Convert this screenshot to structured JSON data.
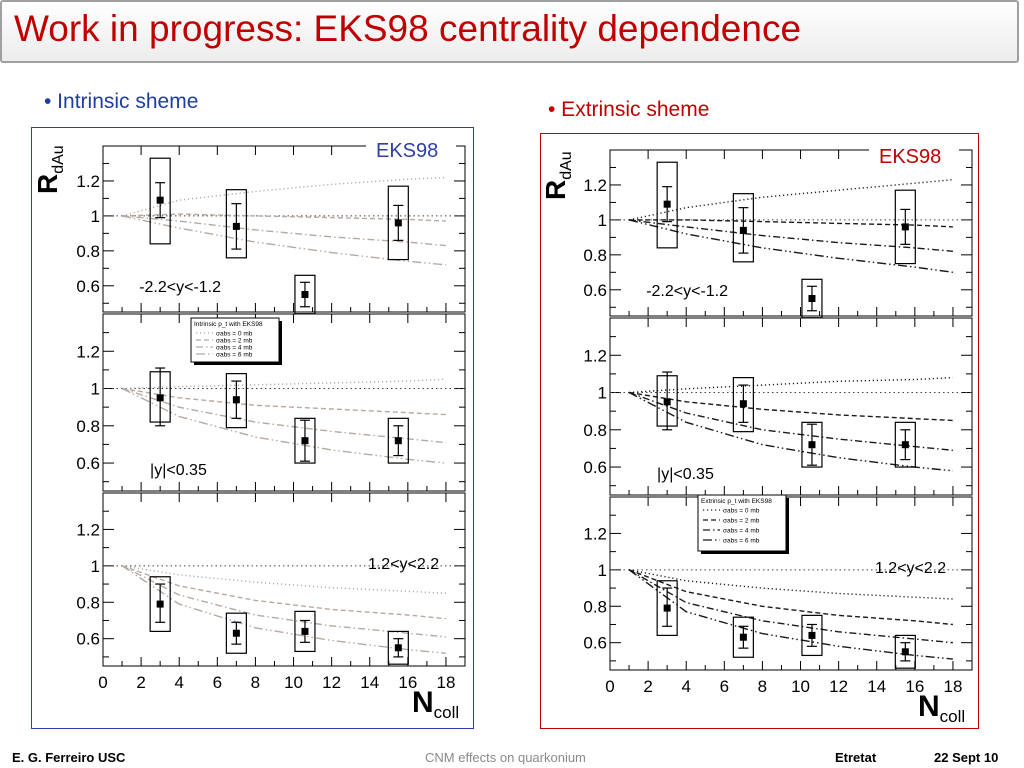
{
  "slide": {
    "title": "Work in progress: EKS98 centrality dependence"
  },
  "left_panel": {
    "bullet": "• Intrinsic sheme",
    "model_label": "EKS98",
    "border_color": "#2f3fa8"
  },
  "right_panel": {
    "bullet": "• Extrinsic sheme",
    "model_label": "EKS98",
    "border_color": "#c00000"
  },
  "footer": {
    "author": "E. G. Ferreiro USC",
    "topic": "CNM effects on quarkonium",
    "venue": "Etretat",
    "date": "22 Sept 10"
  },
  "chart_data": [
    {
      "type": "scatter",
      "scheme": "intrinsic",
      "ylabel": "R_dAu",
      "xlabel": "N_coll",
      "xlim": [
        0,
        19
      ],
      "x_ticks": [
        "0",
        "2",
        "4",
        "6",
        "8",
        "10",
        "12",
        "14",
        "16",
        "18"
      ],
      "y_ticks": [
        "0.6",
        "0.8",
        "1",
        "1.2"
      ],
      "legend": {
        "title": "Intrinsic p_t with EKS98",
        "entries": [
          "σabs = 0 mb",
          "σabs = 2 mb",
          "σabs = 4 mb",
          "σabs = 6 mb"
        ],
        "panel": 1
      },
      "panels": [
        {
          "label": "-2.2<y<-1.2",
          "ylim": [
            0.45,
            1.4
          ],
          "points": [
            {
              "x": 3.0,
              "y": 1.09,
              "stat": [
                0.99,
                1.19
              ],
              "sys": [
                0.84,
                1.33
              ]
            },
            {
              "x": 7.0,
              "y": 0.94,
              "stat": [
                0.81,
                1.07
              ],
              "sys": [
                0.76,
                1.15
              ]
            },
            {
              "x": 10.6,
              "y": 0.55,
              "stat": [
                0.48,
                0.62
              ],
              "sys": [
                0.44,
                0.66
              ]
            },
            {
              "x": 15.5,
              "y": 0.96,
              "stat": [
                0.86,
                1.06
              ],
              "sys": [
                0.75,
                1.17
              ]
            }
          ],
          "curves": [
            {
              "sigma_abs": "0 mb",
              "x": [
                1,
                4,
                8,
                12,
                16,
                18
              ],
              "y": [
                1.0,
                1.09,
                1.14,
                1.18,
                1.21,
                1.22
              ]
            },
            {
              "sigma_abs": "2 mb",
              "x": [
                1,
                4,
                8,
                12,
                16,
                18
              ],
              "y": [
                1.0,
                1.01,
                1.0,
                0.99,
                0.98,
                0.97
              ]
            },
            {
              "sigma_abs": "4 mb",
              "x": [
                1,
                4,
                8,
                12,
                16,
                18
              ],
              "y": [
                1.0,
                0.97,
                0.92,
                0.88,
                0.85,
                0.83
              ]
            },
            {
              "sigma_abs": "6 mb",
              "x": [
                1,
                4,
                8,
                12,
                16,
                18
              ],
              "y": [
                1.0,
                0.93,
                0.85,
                0.79,
                0.74,
                0.72
              ]
            }
          ]
        },
        {
          "label": "|y|<0.35",
          "ylim": [
            0.45,
            1.4
          ],
          "points": [
            {
              "x": 3.0,
              "y": 0.95,
              "stat": [
                0.8,
                1.11
              ],
              "sys": [
                0.82,
                1.09
              ]
            },
            {
              "x": 7.0,
              "y": 0.94,
              "stat": [
                0.84,
                1.04
              ],
              "sys": [
                0.79,
                1.08
              ]
            },
            {
              "x": 10.6,
              "y": 0.72,
              "stat": [
                0.61,
                0.83
              ],
              "sys": [
                0.6,
                0.84
              ]
            },
            {
              "x": 15.5,
              "y": 0.72,
              "stat": [
                0.64,
                0.8
              ],
              "sys": [
                0.6,
                0.84
              ]
            }
          ],
          "curves": [
            {
              "sigma_abs": "0 mb",
              "x": [
                1,
                4,
                8,
                12,
                16,
                18
              ],
              "y": [
                1.0,
                1.01,
                1.02,
                1.03,
                1.04,
                1.05
              ]
            },
            {
              "sigma_abs": "2 mb",
              "x": [
                1,
                4,
                8,
                12,
                16,
                18
              ],
              "y": [
                1.0,
                0.95,
                0.91,
                0.89,
                0.87,
                0.86
              ]
            },
            {
              "sigma_abs": "4 mb",
              "x": [
                1,
                4,
                8,
                12,
                16,
                18
              ],
              "y": [
                1.0,
                0.9,
                0.82,
                0.77,
                0.73,
                0.71
              ]
            },
            {
              "sigma_abs": "6 mb",
              "x": [
                1,
                4,
                8,
                12,
                16,
                18
              ],
              "y": [
                1.0,
                0.85,
                0.74,
                0.67,
                0.62,
                0.6
              ]
            }
          ]
        },
        {
          "label": "1.2<y<2.2",
          "ylim": [
            0.45,
            1.4
          ],
          "points": [
            {
              "x": 3.0,
              "y": 0.79,
              "stat": [
                0.69,
                0.9
              ],
              "sys": [
                0.64,
                0.94
              ]
            },
            {
              "x": 7.0,
              "y": 0.63,
              "stat": [
                0.57,
                0.69
              ],
              "sys": [
                0.52,
                0.74
              ]
            },
            {
              "x": 10.6,
              "y": 0.64,
              "stat": [
                0.58,
                0.7
              ],
              "sys": [
                0.53,
                0.75
              ]
            },
            {
              "x": 15.5,
              "y": 0.55,
              "stat": [
                0.5,
                0.6
              ],
              "sys": [
                0.46,
                0.64
              ]
            }
          ],
          "curves": [
            {
              "sigma_abs": "0 mb",
              "x": [
                1,
                4,
                8,
                12,
                16,
                18
              ],
              "y": [
                1.0,
                0.95,
                0.91,
                0.88,
                0.86,
                0.85
              ]
            },
            {
              "sigma_abs": "2 mb",
              "x": [
                1,
                4,
                8,
                12,
                16,
                18
              ],
              "y": [
                1.0,
                0.89,
                0.81,
                0.76,
                0.73,
                0.71
              ]
            },
            {
              "sigma_abs": "4 mb",
              "x": [
                1,
                4,
                8,
                12,
                16,
                18
              ],
              "y": [
                1.0,
                0.84,
                0.73,
                0.67,
                0.63,
                0.61
              ]
            },
            {
              "sigma_abs": "6 mb",
              "x": [
                1,
                4,
                8,
                12,
                16,
                18
              ],
              "y": [
                1.0,
                0.79,
                0.66,
                0.59,
                0.54,
                0.52
              ]
            }
          ]
        }
      ]
    },
    {
      "type": "scatter",
      "scheme": "extrinsic",
      "ylabel": "R_dAu",
      "xlabel": "N_coll",
      "xlim": [
        0,
        19
      ],
      "x_ticks": [
        "0",
        "2",
        "4",
        "6",
        "8",
        "10",
        "12",
        "14",
        "16",
        "18"
      ],
      "y_ticks": [
        "0.6",
        "0.8",
        "1",
        "1.2"
      ],
      "legend": {
        "title": "Extrinsic p_t with EKS98",
        "entries": [
          "σabs = 0 mb",
          "σabs = 2 mb",
          "σabs = 4 mb",
          "σabs = 6 mb"
        ],
        "panel": 2
      },
      "panels": [
        {
          "label": "-2.2<y<-1.2",
          "ylim": [
            0.45,
            1.4
          ],
          "points": [
            {
              "x": 3.0,
              "y": 1.09,
              "stat": [
                0.99,
                1.19
              ],
              "sys": [
                0.84,
                1.33
              ]
            },
            {
              "x": 7.0,
              "y": 0.94,
              "stat": [
                0.81,
                1.07
              ],
              "sys": [
                0.76,
                1.15
              ]
            },
            {
              "x": 10.6,
              "y": 0.55,
              "stat": [
                0.48,
                0.62
              ],
              "sys": [
                0.44,
                0.66
              ]
            },
            {
              "x": 15.5,
              "y": 0.96,
              "stat": [
                0.86,
                1.06
              ],
              "sys": [
                0.75,
                1.17
              ]
            }
          ],
          "curves": [
            {
              "sigma_abs": "0 mb",
              "x": [
                1,
                4,
                8,
                12,
                16,
                18
              ],
              "y": [
                1.0,
                1.07,
                1.13,
                1.17,
                1.21,
                1.23
              ]
            },
            {
              "sigma_abs": "2 mb",
              "x": [
                1,
                4,
                8,
                12,
                16,
                18
              ],
              "y": [
                1.0,
                1.0,
                0.99,
                0.98,
                0.97,
                0.96
              ]
            },
            {
              "sigma_abs": "4 mb",
              "x": [
                1,
                4,
                8,
                12,
                16,
                18
              ],
              "y": [
                1.0,
                0.96,
                0.91,
                0.87,
                0.84,
                0.82
              ]
            },
            {
              "sigma_abs": "6 mb",
              "x": [
                1,
                4,
                8,
                12,
                16,
                18
              ],
              "y": [
                1.0,
                0.92,
                0.84,
                0.78,
                0.73,
                0.7
              ]
            }
          ]
        },
        {
          "label": "|y|<0.35",
          "ylim": [
            0.45,
            1.4
          ],
          "points": [
            {
              "x": 3.0,
              "y": 0.95,
              "stat": [
                0.8,
                1.11
              ],
              "sys": [
                0.82,
                1.09
              ]
            },
            {
              "x": 7.0,
              "y": 0.94,
              "stat": [
                0.84,
                1.04
              ],
              "sys": [
                0.79,
                1.08
              ]
            },
            {
              "x": 10.6,
              "y": 0.72,
              "stat": [
                0.61,
                0.83
              ],
              "sys": [
                0.6,
                0.84
              ]
            },
            {
              "x": 15.5,
              "y": 0.72,
              "stat": [
                0.64,
                0.8
              ],
              "sys": [
                0.6,
                0.84
              ]
            }
          ],
          "curves": [
            {
              "sigma_abs": "0 mb",
              "x": [
                1,
                4,
                8,
                12,
                16,
                18
              ],
              "y": [
                1.0,
                1.02,
                1.04,
                1.06,
                1.07,
                1.08
              ]
            },
            {
              "sigma_abs": "2 mb",
              "x": [
                1,
                4,
                8,
                12,
                16,
                18
              ],
              "y": [
                1.0,
                0.95,
                0.91,
                0.88,
                0.86,
                0.85
              ]
            },
            {
              "sigma_abs": "4 mb",
              "x": [
                1,
                4,
                8,
                12,
                16,
                18
              ],
              "y": [
                1.0,
                0.89,
                0.8,
                0.75,
                0.71,
                0.69
              ]
            },
            {
              "sigma_abs": "6 mb",
              "x": [
                1,
                4,
                8,
                12,
                16,
                18
              ],
              "y": [
                1.0,
                0.84,
                0.72,
                0.65,
                0.6,
                0.58
              ]
            }
          ]
        },
        {
          "label": "1.2<y<2.2",
          "ylim": [
            0.45,
            1.4
          ],
          "points": [
            {
              "x": 3.0,
              "y": 0.79,
              "stat": [
                0.69,
                0.9
              ],
              "sys": [
                0.64,
                0.94
              ]
            },
            {
              "x": 7.0,
              "y": 0.63,
              "stat": [
                0.57,
                0.69
              ],
              "sys": [
                0.52,
                0.74
              ]
            },
            {
              "x": 10.6,
              "y": 0.64,
              "stat": [
                0.58,
                0.7
              ],
              "sys": [
                0.53,
                0.75
              ]
            },
            {
              "x": 15.5,
              "y": 0.55,
              "stat": [
                0.5,
                0.6
              ],
              "sys": [
                0.46,
                0.64
              ]
            }
          ],
          "curves": [
            {
              "sigma_abs": "0 mb",
              "x": [
                1,
                4,
                8,
                12,
                16,
                18
              ],
              "y": [
                1.0,
                0.94,
                0.9,
                0.87,
                0.85,
                0.84
              ]
            },
            {
              "sigma_abs": "2 mb",
              "x": [
                1,
                4,
                8,
                12,
                16,
                18
              ],
              "y": [
                1.0,
                0.88,
                0.8,
                0.75,
                0.72,
                0.7
              ]
            },
            {
              "sigma_abs": "4 mb",
              "x": [
                1,
                4,
                8,
                12,
                16,
                18
              ],
              "y": [
                1.0,
                0.82,
                0.72,
                0.66,
                0.62,
                0.6
              ]
            },
            {
              "sigma_abs": "6 mb",
              "x": [
                1,
                4,
                8,
                12,
                16,
                18
              ],
              "y": [
                1.0,
                0.77,
                0.65,
                0.58,
                0.53,
                0.51
              ]
            }
          ]
        }
      ]
    }
  ]
}
